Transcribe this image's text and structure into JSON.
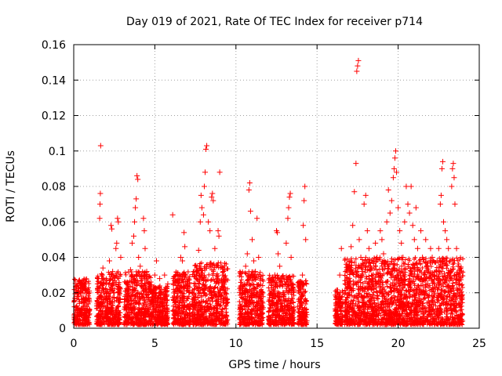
{
  "chart_data": {
    "type": "scatter",
    "title": "Day 019 of 2021, Rate Of TEC Index for receiver p714",
    "xlabel": "GPS time / hours",
    "ylabel": "ROTI / TECUs",
    "xlim": [
      0,
      25
    ],
    "ylim": [
      0,
      0.16
    ],
    "x_ticks": [
      0,
      5,
      10,
      15,
      20,
      25
    ],
    "x_tick_labels": [
      "0",
      "5",
      "10",
      "15",
      "20",
      "25"
    ],
    "y_ticks": [
      0,
      0.02,
      0.04,
      0.06,
      0.08,
      0.1,
      0.12,
      0.14,
      0.16
    ],
    "y_tick_labels": [
      "0",
      "0.02",
      "0.04",
      "0.06",
      "0.08",
      "0.1",
      "0.12",
      "0.14",
      "0.16"
    ],
    "grid": true,
    "marker": "+",
    "color": "#ff0000",
    "series": [
      {
        "name": "ROTI",
        "points": [
          [
            0.1,
            0.006
          ],
          [
            0.15,
            0.012
          ],
          [
            0.2,
            0.018
          ],
          [
            0.25,
            0.024
          ],
          [
            0.3,
            0.009
          ],
          [
            0.35,
            0.014
          ],
          [
            0.4,
            0.02
          ],
          [
            0.45,
            0.025
          ],
          [
            0.5,
            0.007
          ],
          [
            0.6,
            0.015
          ],
          [
            0.7,
            0.022
          ],
          [
            0.75,
            0.026
          ],
          [
            0.8,
            0.01
          ],
          [
            0.9,
            0.017
          ],
          [
            0.95,
            0.021
          ],
          [
            0.2,
            0.004
          ],
          [
            0.5,
            0.003
          ],
          [
            0.8,
            0.005
          ],
          [
            1.5,
            0.005
          ],
          [
            1.6,
            0.012
          ],
          [
            1.7,
            0.02
          ],
          [
            1.75,
            0.028
          ],
          [
            1.6,
            0.062
          ],
          [
            1.62,
            0.07
          ],
          [
            1.64,
            0.076
          ],
          [
            1.66,
            0.103
          ],
          [
            1.8,
            0.034
          ],
          [
            1.9,
            0.018
          ],
          [
            2.0,
            0.025
          ],
          [
            2.1,
            0.012
          ],
          [
            2.2,
            0.038
          ],
          [
            2.3,
            0.058
          ],
          [
            2.35,
            0.056
          ],
          [
            2.4,
            0.032
          ],
          [
            2.5,
            0.02
          ],
          [
            2.6,
            0.045
          ],
          [
            2.65,
            0.048
          ],
          [
            2.7,
            0.062
          ],
          [
            2.75,
            0.06
          ],
          [
            2.8,
            0.015
          ],
          [
            2.9,
            0.04
          ],
          [
            1.8,
            0.008
          ],
          [
            2.0,
            0.006
          ],
          [
            2.2,
            0.01
          ],
          [
            2.5,
            0.007
          ],
          [
            2.7,
            0.005
          ],
          [
            3.2,
            0.006
          ],
          [
            3.3,
            0.015
          ],
          [
            3.4,
            0.022
          ],
          [
            3.5,
            0.033
          ],
          [
            3.6,
            0.048
          ],
          [
            3.7,
            0.052
          ],
          [
            3.75,
            0.06
          ],
          [
            3.8,
            0.068
          ],
          [
            3.85,
            0.073
          ],
          [
            3.9,
            0.086
          ],
          [
            3.95,
            0.084
          ],
          [
            4.0,
            0.04
          ],
          [
            4.1,
            0.035
          ],
          [
            4.2,
            0.028
          ],
          [
            4.3,
            0.062
          ],
          [
            4.35,
            0.055
          ],
          [
            4.4,
            0.045
          ],
          [
            4.5,
            0.032
          ],
          [
            4.6,
            0.022
          ],
          [
            4.7,
            0.014
          ],
          [
            3.3,
            0.008
          ],
          [
            3.6,
            0.01
          ],
          [
            3.9,
            0.005
          ],
          [
            4.2,
            0.007
          ],
          [
            4.5,
            0.009
          ],
          [
            4.8,
            0.008
          ],
          [
            4.9,
            0.02
          ],
          [
            5.0,
            0.03
          ],
          [
            5.1,
            0.038
          ],
          [
            5.2,
            0.015
          ],
          [
            5.3,
            0.028
          ],
          [
            5.4,
            0.022
          ],
          [
            5.5,
            0.01
          ],
          [
            5.6,
            0.03
          ],
          [
            5.7,
            0.018
          ],
          [
            5.8,
            0.025
          ],
          [
            5.0,
            0.005
          ],
          [
            5.4,
            0.006
          ],
          [
            6.1,
            0.064
          ],
          [
            6.2,
            0.008
          ],
          [
            6.3,
            0.015
          ],
          [
            6.4,
            0.022
          ],
          [
            6.5,
            0.03
          ],
          [
            6.6,
            0.04
          ],
          [
            6.7,
            0.038
          ],
          [
            6.8,
            0.054
          ],
          [
            6.85,
            0.046
          ],
          [
            6.9,
            0.03
          ],
          [
            7.0,
            0.024
          ],
          [
            7.1,
            0.018
          ],
          [
            7.2,
            0.012
          ],
          [
            6.4,
            0.005
          ],
          [
            6.8,
            0.006
          ],
          [
            7.0,
            0.004
          ],
          [
            7.3,
            0.008
          ],
          [
            7.4,
            0.016
          ],
          [
            7.5,
            0.025
          ],
          [
            7.6,
            0.035
          ],
          [
            7.7,
            0.044
          ],
          [
            7.8,
            0.06
          ],
          [
            7.85,
            0.075
          ],
          [
            7.9,
            0.068
          ],
          [
            8.0,
            0.064
          ],
          [
            8.05,
            0.08
          ],
          [
            8.1,
            0.088
          ],
          [
            8.15,
            0.101
          ],
          [
            8.2,
            0.103
          ],
          [
            8.3,
            0.06
          ],
          [
            8.4,
            0.055
          ],
          [
            8.5,
            0.074
          ],
          [
            8.55,
            0.076
          ],
          [
            8.6,
            0.072
          ],
          [
            8.7,
            0.045
          ],
          [
            8.8,
            0.035
          ],
          [
            8.9,
            0.055
          ],
          [
            8.95,
            0.052
          ],
          [
            9.0,
            0.088
          ],
          [
            9.2,
            0.03
          ],
          [
            9.3,
            0.02
          ],
          [
            9.4,
            0.014
          ],
          [
            7.5,
            0.006
          ],
          [
            8.0,
            0.005
          ],
          [
            8.5,
            0.007
          ],
          [
            9.0,
            0.008
          ],
          [
            10.3,
            0.008
          ],
          [
            10.4,
            0.015
          ],
          [
            10.5,
            0.025
          ],
          [
            10.6,
            0.035
          ],
          [
            10.7,
            0.042
          ],
          [
            10.8,
            0.078
          ],
          [
            10.85,
            0.082
          ],
          [
            10.9,
            0.066
          ],
          [
            11.0,
            0.05
          ],
          [
            11.1,
            0.038
          ],
          [
            11.2,
            0.032
          ],
          [
            11.3,
            0.062
          ],
          [
            11.4,
            0.04
          ],
          [
            11.5,
            0.028
          ],
          [
            11.6,
            0.02
          ],
          [
            10.5,
            0.005
          ],
          [
            11.0,
            0.006
          ],
          [
            11.4,
            0.007
          ],
          [
            12.1,
            0.006
          ],
          [
            12.2,
            0.014
          ],
          [
            12.3,
            0.022
          ],
          [
            12.4,
            0.03
          ],
          [
            12.5,
            0.055
          ],
          [
            12.55,
            0.054
          ],
          [
            12.6,
            0.042
          ],
          [
            12.7,
            0.035
          ],
          [
            12.8,
            0.028
          ],
          [
            12.9,
            0.02
          ],
          [
            13.0,
            0.015
          ],
          [
            13.1,
            0.048
          ],
          [
            13.2,
            0.062
          ],
          [
            13.25,
            0.068
          ],
          [
            13.3,
            0.074
          ],
          [
            13.35,
            0.076
          ],
          [
            13.4,
            0.04
          ],
          [
            13.5,
            0.025
          ],
          [
            12.4,
            0.004
          ],
          [
            12.9,
            0.005
          ],
          [
            13.3,
            0.006
          ],
          [
            13.9,
            0.005
          ],
          [
            14.0,
            0.015
          ],
          [
            14.1,
            0.03
          ],
          [
            14.15,
            0.058
          ],
          [
            14.2,
            0.072
          ],
          [
            14.25,
            0.08
          ],
          [
            14.3,
            0.05
          ],
          [
            14.35,
            0.025
          ],
          [
            14.0,
            0.003
          ],
          [
            14.2,
            0.008
          ],
          [
            16.2,
            0.004
          ],
          [
            16.3,
            0.015
          ],
          [
            16.4,
            0.03
          ],
          [
            16.5,
            0.045
          ],
          [
            16.6,
            0.02
          ],
          [
            16.7,
            0.006
          ],
          [
            16.8,
            0.015
          ],
          [
            16.9,
            0.025
          ],
          [
            17.0,
            0.035
          ],
          [
            17.1,
            0.046
          ],
          [
            17.2,
            0.058
          ],
          [
            17.3,
            0.077
          ],
          [
            17.4,
            0.093
          ],
          [
            17.45,
            0.145
          ],
          [
            17.5,
            0.148
          ],
          [
            17.55,
            0.151
          ],
          [
            17.6,
            0.05
          ],
          [
            17.7,
            0.04
          ],
          [
            17.8,
            0.032
          ],
          [
            17.9,
            0.07
          ],
          [
            18.0,
            0.075
          ],
          [
            18.1,
            0.055
          ],
          [
            18.2,
            0.045
          ],
          [
            18.3,
            0.035
          ],
          [
            18.4,
            0.028
          ],
          [
            18.5,
            0.022
          ],
          [
            18.6,
            0.048
          ],
          [
            18.7,
            0.04
          ],
          [
            18.8,
            0.03
          ],
          [
            18.9,
            0.055
          ],
          [
            19.0,
            0.05
          ],
          [
            19.1,
            0.042
          ],
          [
            19.2,
            0.035
          ],
          [
            19.3,
            0.06
          ],
          [
            19.4,
            0.078
          ],
          [
            19.5,
            0.065
          ],
          [
            19.6,
            0.072
          ],
          [
            19.7,
            0.085
          ],
          [
            19.75,
            0.09
          ],
          [
            19.8,
            0.096
          ],
          [
            19.85,
            0.1
          ],
          [
            19.9,
            0.088
          ],
          [
            20.0,
            0.068
          ],
          [
            20.1,
            0.055
          ],
          [
            20.2,
            0.048
          ],
          [
            20.3,
            0.04
          ],
          [
            20.4,
            0.06
          ],
          [
            20.5,
            0.08
          ],
          [
            20.6,
            0.07
          ],
          [
            20.7,
            0.065
          ],
          [
            20.8,
            0.08
          ],
          [
            20.9,
            0.058
          ],
          [
            21.0,
            0.05
          ],
          [
            21.1,
            0.068
          ],
          [
            21.2,
            0.045
          ],
          [
            21.3,
            0.038
          ],
          [
            21.4,
            0.055
          ],
          [
            21.5,
            0.04
          ],
          [
            21.6,
            0.03
          ],
          [
            21.7,
            0.05
          ],
          [
            21.8,
            0.035
          ],
          [
            21.9,
            0.028
          ],
          [
            22.0,
            0.045
          ],
          [
            22.1,
            0.04
          ],
          [
            22.2,
            0.03
          ],
          [
            22.3,
            0.022
          ],
          [
            22.4,
            0.038
          ],
          [
            22.5,
            0.045
          ],
          [
            22.6,
            0.07
          ],
          [
            22.65,
            0.075
          ],
          [
            22.7,
            0.09
          ],
          [
            22.75,
            0.094
          ],
          [
            22.8,
            0.06
          ],
          [
            22.9,
            0.055
          ],
          [
            23.0,
            0.05
          ],
          [
            23.1,
            0.045
          ],
          [
            23.2,
            0.038
          ],
          [
            23.3,
            0.08
          ],
          [
            23.35,
            0.09
          ],
          [
            23.4,
            0.093
          ],
          [
            23.45,
            0.085
          ],
          [
            23.5,
            0.07
          ],
          [
            23.6,
            0.045
          ],
          [
            23.7,
            0.035
          ],
          [
            23.8,
            0.025
          ],
          [
            23.9,
            0.018
          ],
          [
            17.0,
            0.005
          ],
          [
            17.5,
            0.008
          ],
          [
            18.0,
            0.006
          ],
          [
            18.5,
            0.01
          ],
          [
            19.0,
            0.012
          ],
          [
            19.5,
            0.015
          ],
          [
            20.0,
            0.02
          ],
          [
            20.5,
            0.018
          ],
          [
            21.0,
            0.016
          ],
          [
            21.5,
            0.014
          ],
          [
            22.0,
            0.012
          ],
          [
            22.5,
            0.01
          ],
          [
            23.0,
            0.008
          ],
          [
            23.5,
            0.006
          ],
          [
            23.9,
            0.005
          ]
        ]
      }
    ]
  }
}
